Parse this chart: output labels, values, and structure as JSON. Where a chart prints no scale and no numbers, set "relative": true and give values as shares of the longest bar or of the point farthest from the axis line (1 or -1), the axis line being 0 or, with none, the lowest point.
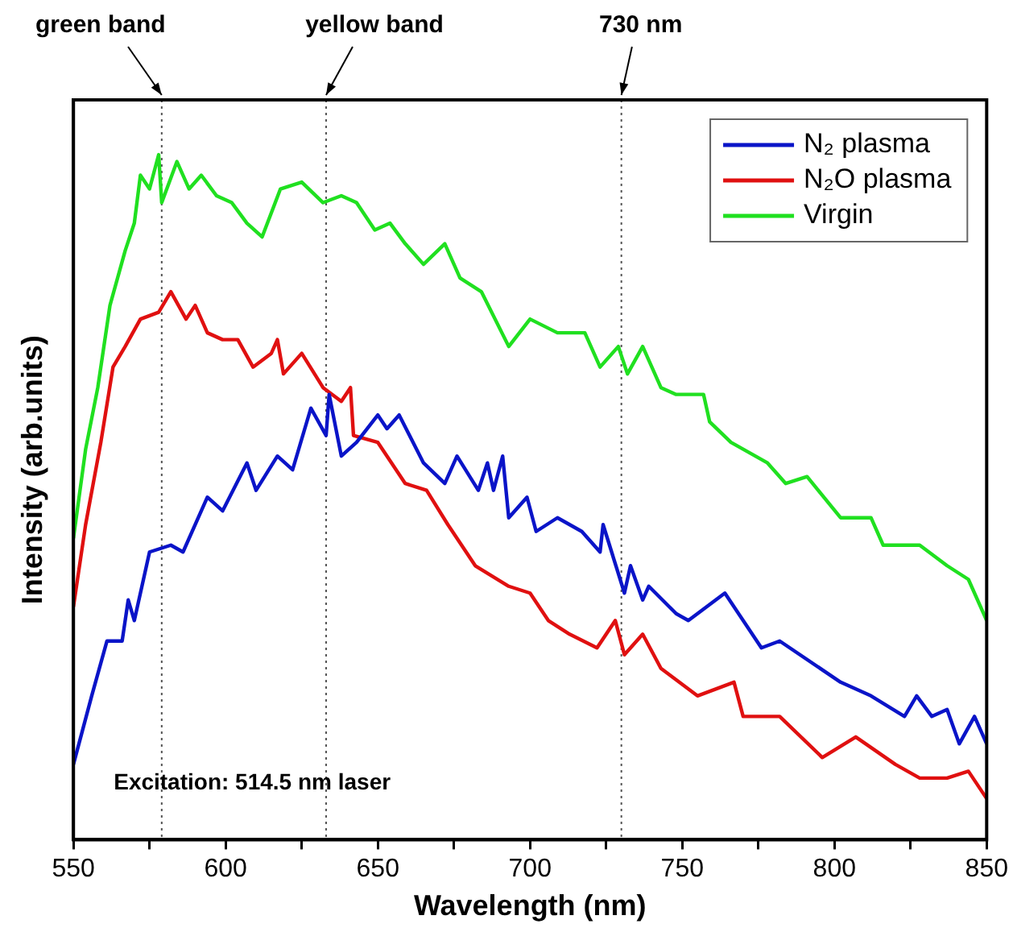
{
  "chart_data": {
    "type": "line",
    "xlabel": "Wavelength (nm)",
    "ylabel": "Intensity (arb.units)",
    "relative": true,
    "xlim": [
      550,
      850
    ],
    "xticks": [
      550,
      {
        "value": 575,
        "label": null
      },
      600,
      {
        "value": 625,
        "label": null
      },
      650,
      {
        "value": 675,
        "label": null
      },
      700,
      {
        "value": 725,
        "label": null
      },
      750,
      {
        "value": 775,
        "label": null
      },
      800,
      {
        "value": 825,
        "label": null
      },
      850
    ],
    "tick_labels": "x",
    "legend": "top right",
    "grid": false,
    "marker": "none",
    "line_style": "solid",
    "series": [
      {
        "name": "N₂ plasma",
        "color": "#0a14c8",
        "x": [
          550,
          556,
          561,
          566,
          568,
          570,
          575,
          582,
          586,
          594,
          599,
          607,
          610,
          617,
          622,
          628,
          633,
          634,
          638,
          643,
          650,
          653,
          657,
          665,
          672,
          676,
          683,
          686,
          688,
          691,
          693,
          699,
          702,
          709,
          717,
          723,
          724,
          731,
          733,
          737,
          739,
          748,
          752,
          764,
          776,
          782,
          802,
          812,
          823,
          827,
          832,
          837,
          841,
          846,
          850
        ],
        "values": [
          0.11,
          0.21,
          0.29,
          0.29,
          0.35,
          0.32,
          0.42,
          0.43,
          0.42,
          0.5,
          0.48,
          0.55,
          0.51,
          0.56,
          0.54,
          0.63,
          0.59,
          0.65,
          0.56,
          0.58,
          0.62,
          0.6,
          0.62,
          0.55,
          0.52,
          0.56,
          0.51,
          0.55,
          0.51,
          0.56,
          0.47,
          0.5,
          0.45,
          0.47,
          0.45,
          0.42,
          0.46,
          0.36,
          0.4,
          0.35,
          0.37,
          0.33,
          0.32,
          0.36,
          0.28,
          0.29,
          0.23,
          0.21,
          0.18,
          0.21,
          0.18,
          0.19,
          0.14,
          0.18,
          0.14
        ]
      },
      {
        "name": "N₂O plasma",
        "color": "#e01010",
        "x": [
          550,
          554,
          559,
          563,
          567,
          572,
          578,
          582,
          587,
          590,
          594,
          599,
          604,
          609,
          615,
          617,
          619,
          625,
          632,
          638,
          641,
          642,
          650,
          659,
          666,
          673,
          682,
          693,
          700,
          706,
          713,
          722,
          728,
          731,
          737,
          743,
          755,
          767,
          770,
          782,
          796,
          807,
          820,
          828,
          837,
          844,
          850
        ],
        "values": [
          0.34,
          0.46,
          0.58,
          0.69,
          0.72,
          0.76,
          0.77,
          0.8,
          0.76,
          0.78,
          0.74,
          0.73,
          0.73,
          0.69,
          0.71,
          0.73,
          0.68,
          0.71,
          0.66,
          0.64,
          0.66,
          0.59,
          0.58,
          0.52,
          0.51,
          0.46,
          0.4,
          0.37,
          0.36,
          0.32,
          0.3,
          0.28,
          0.32,
          0.27,
          0.3,
          0.25,
          0.21,
          0.23,
          0.18,
          0.18,
          0.12,
          0.15,
          0.11,
          0.09,
          0.09,
          0.1,
          0.06
        ]
      },
      {
        "name": "Virgin",
        "color": "#20e020",
        "x": [
          550,
          554,
          558,
          562,
          567,
          570,
          572,
          575,
          578,
          579,
          584,
          588,
          592,
          597,
          602,
          607,
          612,
          618,
          625,
          632,
          638,
          643,
          649,
          654,
          659,
          665,
          672,
          677,
          684,
          693,
          700,
          709,
          718,
          723,
          729,
          732,
          737,
          743,
          748,
          757,
          759,
          766,
          778,
          784,
          791,
          802,
          812,
          816,
          828,
          837,
          844,
          850
        ],
        "values": [
          0.44,
          0.57,
          0.66,
          0.78,
          0.86,
          0.9,
          0.97,
          0.95,
          1,
          0.93,
          0.99,
          0.95,
          0.97,
          0.94,
          0.93,
          0.9,
          0.88,
          0.95,
          0.96,
          0.93,
          0.94,
          0.93,
          0.89,
          0.9,
          0.87,
          0.84,
          0.87,
          0.82,
          0.8,
          0.72,
          0.76,
          0.74,
          0.74,
          0.69,
          0.72,
          0.68,
          0.72,
          0.66,
          0.65,
          0.65,
          0.61,
          0.58,
          0.55,
          0.52,
          0.53,
          0.47,
          0.47,
          0.43,
          0.43,
          0.4,
          0.38,
          0.32
        ]
      }
    ],
    "ref_lines": [
      {
        "axis": "x",
        "value": 579,
        "label": "green band",
        "color": "#555555",
        "line_style": "dotted"
      },
      {
        "axis": "x",
        "value": 633,
        "label": "yellow band",
        "color": "#555555",
        "line_style": "dotted"
      },
      {
        "axis": "x",
        "value": 730,
        "label": "730 nm",
        "color": "#555555",
        "line_style": "dotted"
      }
    ],
    "annotations": [
      "Excitation: 514.5 nm laser"
    ]
  }
}
